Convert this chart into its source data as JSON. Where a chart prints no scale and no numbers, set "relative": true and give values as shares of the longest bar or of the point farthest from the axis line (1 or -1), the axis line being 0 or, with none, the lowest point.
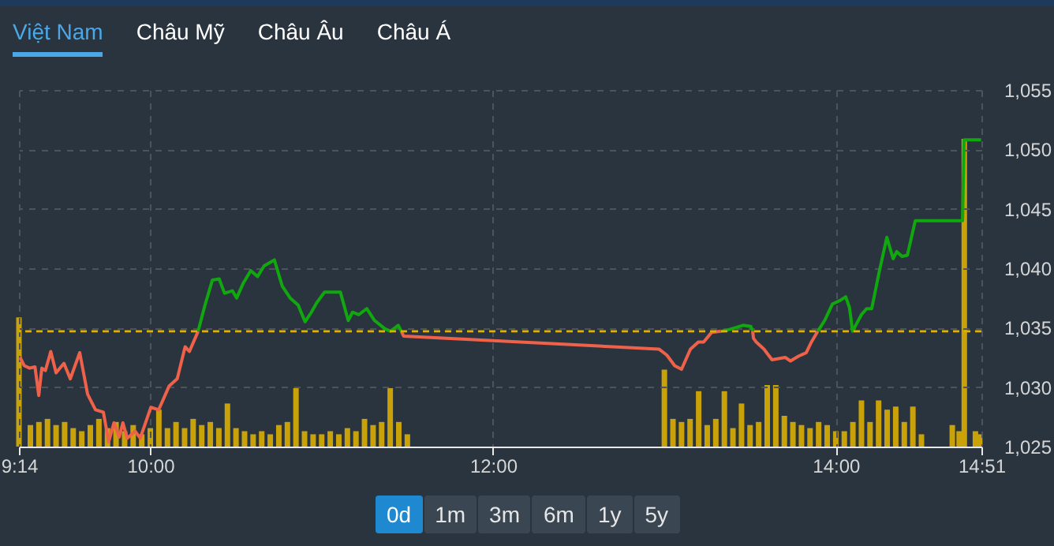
{
  "chart_data": [
    {
      "type": "line",
      "xlim": [
        9.2333,
        14.85
      ],
      "ylim": [
        1025,
        1055
      ],
      "grid": true,
      "xticks": [
        {
          "value": 9.2333,
          "label": "9:14"
        },
        {
          "value": 10,
          "label": "10:00"
        },
        {
          "value": 12,
          "label": "12:00"
        },
        {
          "value": 14,
          "label": "14:00"
        },
        {
          "value": 14.85,
          "label": "14:51"
        }
      ],
      "yticks": [
        {
          "value": 1025,
          "label": "1,025"
        },
        {
          "value": 1030,
          "label": "1,030"
        },
        {
          "value": 1035,
          "label": "1,035"
        },
        {
          "value": 1040,
          "label": "1,040"
        },
        {
          "value": 1045,
          "label": "1,045"
        },
        {
          "value": 1050,
          "label": "1,050"
        },
        {
          "value": 1055,
          "label": "1,055"
        }
      ],
      "ref_lines": [
        {
          "axis": "y",
          "value": 1034.7,
          "color": "#e0b000",
          "line_style": "dashed"
        }
      ],
      "annotations": [
        "Việt Nam",
        "Châu Mỹ",
        "Châu Âu",
        "Châu Á",
        "0d",
        "1m",
        "3m",
        "6m",
        "1y",
        "5y"
      ],
      "series": [
        {
          "color": "#f0614a",
          "x": [
            9.24,
            9.265,
            9.296,
            9.327,
            9.349,
            9.367,
            9.388,
            9.419,
            9.45,
            9.496,
            9.533,
            9.588,
            9.634,
            9.68,
            9.726,
            9.757,
            9.788,
            9.818,
            9.84,
            9.865,
            9.911,
            9.941,
            10.003,
            10.049,
            10.11,
            10.157,
            10.203,
            10.228,
            10.279
          ],
          "values": [
            1032.5,
            1031.8,
            1031.6,
            1031.7,
            1029.3,
            1031.6,
            1031.4,
            1033.0,
            1031.2,
            1032.0,
            1030.7,
            1032.9,
            1029.4,
            1028.1,
            1027.9,
            1025.4,
            1027.0,
            1025.8,
            1027.0,
            1025.7,
            1026.3,
            1025.7,
            1028.3,
            1028.1,
            1030.1,
            1030.7,
            1033.4,
            1033.0,
            1034.7
          ]
        },
        {
          "color": "#11a80f",
          "x": [
            10.279,
            10.319,
            10.362,
            10.402,
            10.433,
            10.479,
            10.504,
            10.541,
            10.586,
            10.626,
            10.664,
            10.724,
            10.77,
            10.816,
            10.863,
            10.903,
            10.94,
            10.971,
            11.017,
            11.109,
            11.155,
            11.18,
            11.217,
            11.263,
            11.309,
            11.37,
            11.401,
            11.447,
            11.465
          ],
          "values": [
            1034.7,
            1036.9,
            1039.0,
            1039.1,
            1037.9,
            1038.1,
            1037.5,
            1038.7,
            1039.8,
            1039.3,
            1040.2,
            1040.7,
            1038.5,
            1037.5,
            1036.9,
            1035.5,
            1036.3,
            1037.1,
            1038.0,
            1038.0,
            1035.6,
            1036.3,
            1036.1,
            1036.6,
            1035.6,
            1034.9,
            1034.7,
            1035.2,
            1034.7
          ]
        },
        {
          "color": "#f0614a",
          "x": [
            11.465,
            11.478,
            12.968,
            13.014,
            13.06,
            13.1,
            13.152,
            13.198,
            13.229,
            13.275,
            13.33
          ],
          "values": [
            1034.7,
            1034.3,
            1033.2,
            1032.7,
            1031.8,
            1031.5,
            1033.2,
            1033.8,
            1033.8,
            1034.6,
            1034.7
          ]
        },
        {
          "color": "#11a80f",
          "x": [
            13.33,
            13.367,
            13.459,
            13.505,
            13.515
          ],
          "values": [
            1034.7,
            1034.8,
            1035.2,
            1035.1,
            1034.7
          ]
        },
        {
          "color": "#f0614a",
          "x": [
            13.515,
            13.52,
            13.536,
            13.581,
            13.628,
            13.705,
            13.736,
            13.782,
            13.828,
            13.858,
            13.895
          ],
          "values": [
            1034.7,
            1034.1,
            1033.8,
            1033.2,
            1032.3,
            1032.5,
            1032.2,
            1032.6,
            1032.9,
            1033.8,
            1034.7
          ]
        },
        {
          "color": "#11a80f",
          "x": [
            13.895,
            13.935,
            13.981,
            14.027,
            14.058,
            14.08,
            14.098,
            14.15,
            14.18,
            14.21,
            14.252,
            14.298,
            14.335,
            14.356,
            14.387,
            14.418,
            14.464,
            14.74,
            14.749,
            14.848
          ],
          "values": [
            1034.7,
            1035.6,
            1037.0,
            1037.3,
            1037.6,
            1036.7,
            1034.7,
            1036.1,
            1036.6,
            1036.6,
            1039.6,
            1042.6,
            1040.8,
            1041.4,
            1041.0,
            1041.1,
            1044.0,
            1044.0,
            1050.8,
            1050.8
          ]
        }
      ]
    },
    {
      "type": "bar",
      "relative": true,
      "xlim": [
        9.2333,
        14.85
      ],
      "tick_labels": false,
      "color": "#c9a20a",
      "x": [
        9.2333,
        9.3,
        9.35,
        9.4,
        9.45,
        9.5,
        9.55,
        9.6,
        9.65,
        9.7,
        9.75,
        9.8,
        9.85,
        9.9,
        9.95,
        10.0,
        10.05,
        10.1,
        10.15,
        10.2,
        10.25,
        10.3,
        10.35,
        10.4,
        10.45,
        10.5,
        10.55,
        10.6,
        10.65,
        10.7,
        10.75,
        10.8,
        10.85,
        10.9,
        10.95,
        11.0,
        11.05,
        11.1,
        11.15,
        11.2,
        11.25,
        11.3,
        11.35,
        11.4,
        11.45,
        11.5,
        13.0,
        13.05,
        13.1,
        13.15,
        13.2,
        13.25,
        13.3,
        13.35,
        13.4,
        13.45,
        13.5,
        13.55,
        13.6,
        13.65,
        13.7,
        13.75,
        13.8,
        13.85,
        13.9,
        13.95,
        14.0,
        14.05,
        14.1,
        14.15,
        14.2,
        14.25,
        14.3,
        14.35,
        14.4,
        14.45,
        14.5,
        14.68,
        14.72,
        14.75,
        14.815,
        14.84
      ],
      "values": [
        0.42,
        0.07,
        0.08,
        0.09,
        0.07,
        0.08,
        0.06,
        0.05,
        0.07,
        0.09,
        0.06,
        0.08,
        0.05,
        0.07,
        0.04,
        0.06,
        0.12,
        0.06,
        0.08,
        0.06,
        0.09,
        0.07,
        0.08,
        0.06,
        0.14,
        0.06,
        0.05,
        0.04,
        0.05,
        0.04,
        0.07,
        0.08,
        0.19,
        0.05,
        0.04,
        0.04,
        0.05,
        0.04,
        0.06,
        0.05,
        0.09,
        0.07,
        0.08,
        0.19,
        0.08,
        0.04,
        0.25,
        0.09,
        0.08,
        0.09,
        0.18,
        0.07,
        0.09,
        0.18,
        0.06,
        0.14,
        0.07,
        0.08,
        0.2,
        0.2,
        0.1,
        0.08,
        0.07,
        0.06,
        0.08,
        0.07,
        0.05,
        0.05,
        0.08,
        0.15,
        0.08,
        0.15,
        0.12,
        0.13,
        0.08,
        0.13,
        0.04,
        0.07,
        0.05,
        1,
        0.05,
        0.04
      ]
    }
  ]
}
